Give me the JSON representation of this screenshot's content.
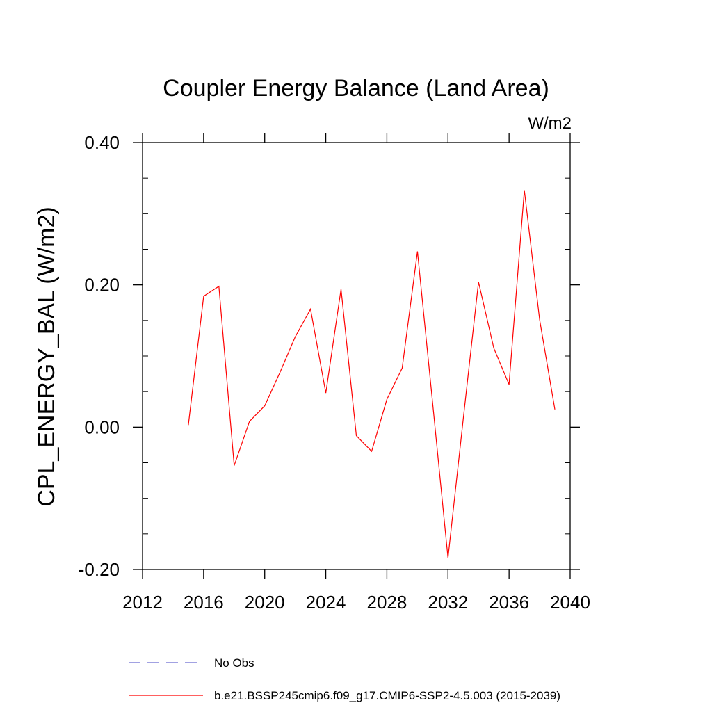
{
  "chart_data": {
    "type": "line",
    "title": "Coupler Energy Balance (Land Area)",
    "units_label": "W/m2",
    "xlabel": "",
    "ylabel": "CPL_ENERGY_BAL  (W/m2)",
    "xlim": [
      2012,
      2040
    ],
    "ylim": [
      -0.2,
      0.4
    ],
    "x_ticks": [
      2012,
      2016,
      2020,
      2024,
      2028,
      2032,
      2036,
      2040
    ],
    "x_tick_labels": [
      "2012",
      "2016",
      "2020",
      "2024",
      "2028",
      "2032",
      "2036",
      "2040"
    ],
    "y_ticks": [
      -0.2,
      0.0,
      0.2,
      0.4
    ],
    "y_tick_labels": [
      "-0.20",
      "0.00",
      "0.20",
      "0.40"
    ],
    "grid": false,
    "legend_position": "bottom",
    "series": [
      {
        "name": "b.e21.BSSP245cmip6.f09_g17.CMIP6-SSP2-4.5.003 (2015-2039)",
        "color": "#ff0000",
        "dash": "solid",
        "x": [
          2015,
          2016,
          2017,
          2018,
          2019,
          2020,
          2021,
          2022,
          2023,
          2024,
          2025,
          2026,
          2027,
          2028,
          2029,
          2030,
          2031,
          2032,
          2033,
          2034,
          2035,
          2036,
          2037,
          2038,
          2039
        ],
        "values": [
          0.003,
          0.184,
          0.198,
          -0.054,
          0.008,
          0.03,
          0.077,
          0.127,
          0.166,
          0.048,
          0.194,
          -0.012,
          -0.034,
          0.039,
          0.083,
          0.247,
          0.033,
          -0.184,
          0.012,
          0.204,
          0.111,
          0.06,
          0.333,
          0.151,
          0.025
        ]
      },
      {
        "name": "No Obs",
        "color": "#6a6ad0",
        "dash": "dashed",
        "x": [],
        "values": []
      }
    ]
  }
}
